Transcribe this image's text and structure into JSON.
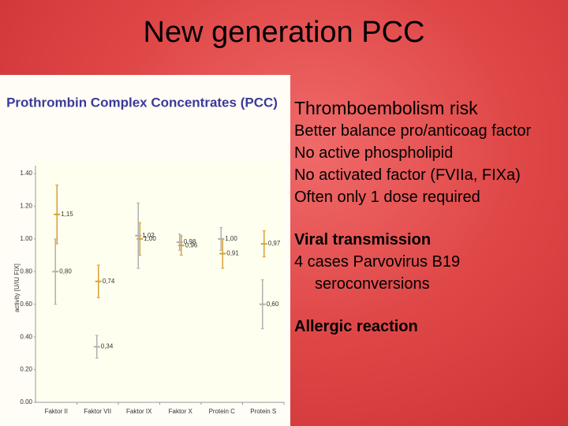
{
  "slide": {
    "title": "New generation PCC",
    "sections": [
      {
        "heading": "Thromboembolism risk",
        "bold": false,
        "items": [
          "Better balance pro/anticoag factor",
          "No active phospholipid",
          "No activated factor (FVIIa, FIXa)",
          "Often only 1 dose required"
        ]
      },
      {
        "heading": "Viral transmission",
        "bold": true,
        "items": [
          "4 cases Parvovirus B19 seroconversions"
        ]
      },
      {
        "heading": "Allergic reaction",
        "bold": true,
        "items": []
      }
    ]
  },
  "chart_data": {
    "type": "errorbar",
    "title": "Prothrombin Complex Concentrates (PCC)",
    "y_label": "activity [U/IU FIX]",
    "categories": [
      "Faktor II",
      "Faktor VII",
      "Faktor IX",
      "Faktor X",
      "Protein C",
      "Protein S"
    ],
    "series": [
      {
        "color": "#d9a032",
        "values": [
          1.15,
          0.74,
          1.0,
          0.96,
          0.91,
          0.97
        ],
        "errors": [
          0.18,
          0.1,
          0.1,
          0.06,
          0.09,
          0.08
        ],
        "value_labels": [
          "1,15",
          "0,74",
          "1,00",
          "0,96",
          "0,91",
          "0,97"
        ]
      },
      {
        "color": "#b0b0b0",
        "values": [
          0.8,
          0.34,
          1.02,
          0.98,
          1.0,
          0.6
        ],
        "errors": [
          0.2,
          0.07,
          0.2,
          0.05,
          0.07,
          0.15
        ],
        "value_labels": [
          "0,80",
          "0,34",
          "1,02",
          "0,98",
          "1,00",
          "0,60"
        ]
      }
    ],
    "ylim": [
      0,
      1.4
    ],
    "yticks": [
      {
        "value": 0,
        "label": "0.00"
      },
      {
        "value": 0.2,
        "label": "0.20"
      },
      {
        "value": 0.4,
        "label": "0.40"
      },
      {
        "value": 0.6,
        "label": "0.60"
      },
      {
        "value": 0.8,
        "label": "0.80"
      },
      {
        "value": 1.0,
        "label": "1.00"
      },
      {
        "value": 1.2,
        "label": "1.20"
      },
      {
        "value": 1.4,
        "label": "1.40"
      }
    ]
  }
}
